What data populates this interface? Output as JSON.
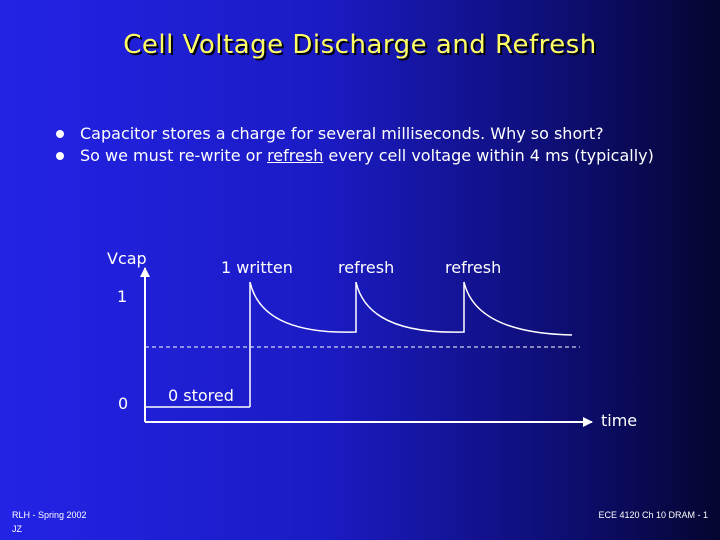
{
  "title": "Cell Voltage Discharge and Refresh",
  "bullets": [
    {
      "pre": "Capacitor stores a charge for several milliseconds. Why so short?",
      "underlined": "",
      "post": ""
    },
    {
      "pre": "So we must re-write or ",
      "underlined": "refresh",
      "post": " every cell voltage within 4 ms (typically)"
    }
  ],
  "diagram": {
    "y_axis_label": "Vcap",
    "x_axis_label": "time",
    "level_high": "1",
    "level_low": "0",
    "annotations": [
      "1 written",
      "refresh",
      "refresh",
      "0 stored"
    ]
  },
  "footer": {
    "left_line1": "RLH - Spring 2002",
    "left_line2": "JZ",
    "right": "ECE 4120 Ch 10 DRAM - 1"
  },
  "colors": {
    "background_start": "#2323e6",
    "background_end": "#050530",
    "title": "#ffff66",
    "text": "#ffffff"
  }
}
